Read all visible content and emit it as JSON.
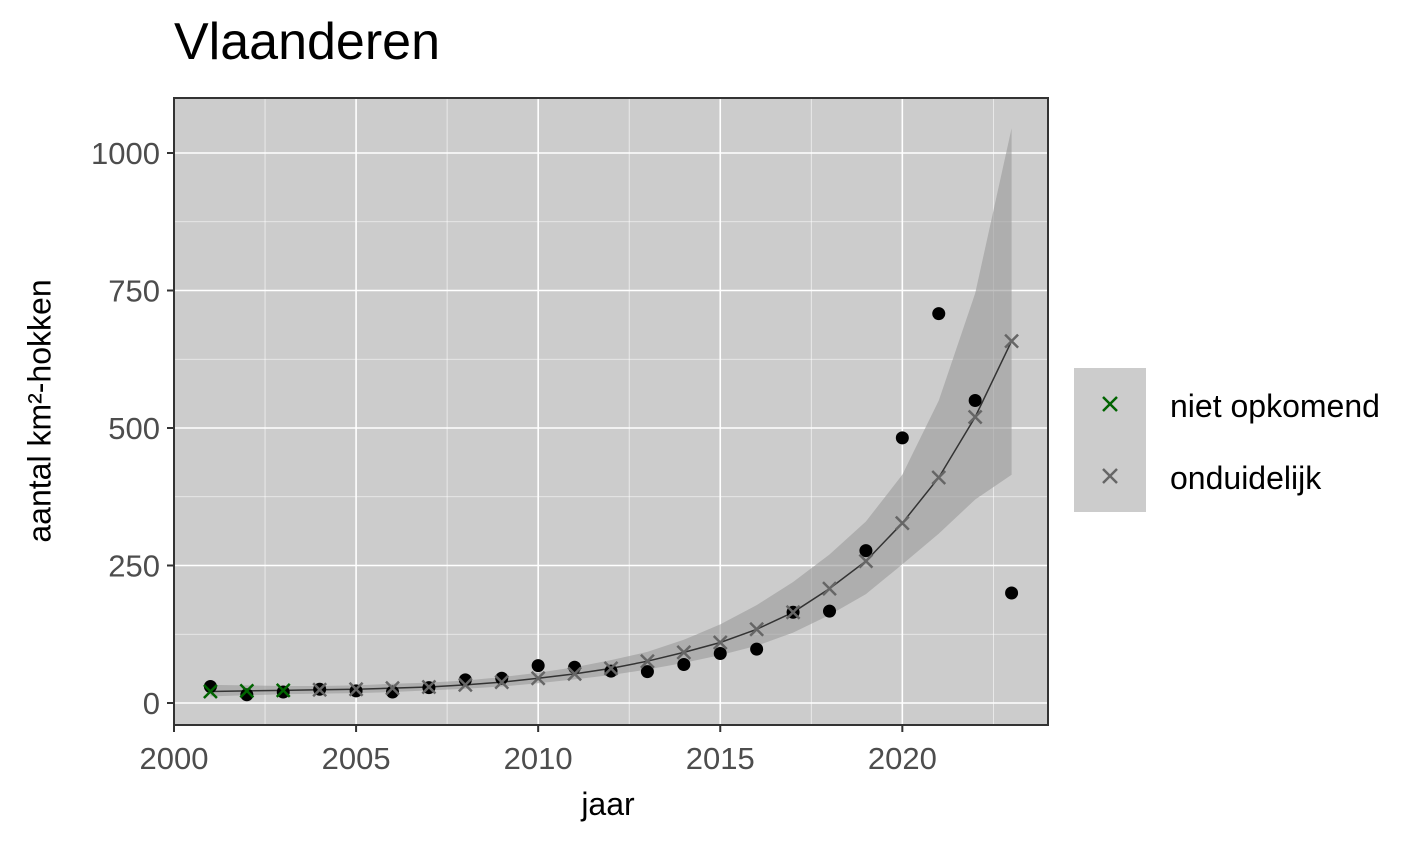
{
  "chart_data": {
    "type": "scatter",
    "title": "Vlaanderen",
    "xlabel": "jaar",
    "ylabel": "aantal km²-hokken",
    "xlim": [
      2000,
      2024
    ],
    "ylim": [
      -40,
      1100
    ],
    "xticks": [
      2000,
      2005,
      2010,
      2015,
      2020
    ],
    "yticks": [
      0,
      250,
      500,
      750,
      1000
    ],
    "grid": true,
    "legend_position": "right",
    "observed": {
      "x": [
        2001,
        2002,
        2003,
        2004,
        2005,
        2006,
        2007,
        2008,
        2009,
        2010,
        2011,
        2012,
        2013,
        2014,
        2015,
        2016,
        2017,
        2018,
        2019,
        2020,
        2021,
        2022,
        2023
      ],
      "y": [
        30,
        15,
        20,
        25,
        22,
        20,
        28,
        42,
        45,
        68,
        65,
        58,
        57,
        70,
        90,
        98,
        165,
        167,
        277,
        482,
        708,
        550,
        200
      ]
    },
    "fit": {
      "x": [
        2001,
        2002,
        2003,
        2004,
        2005,
        2006,
        2007,
        2008,
        2009,
        2010,
        2011,
        2012,
        2013,
        2014,
        2015,
        2016,
        2017,
        2018,
        2019,
        2020,
        2021,
        2022,
        2023
      ],
      "y": [
        21,
        22,
        23,
        24,
        25,
        27,
        29,
        33,
        38,
        45,
        53,
        63,
        76,
        92,
        110,
        134,
        165,
        208,
        258,
        327,
        410,
        520,
        658
      ],
      "lower": [
        12,
        14,
        16,
        17,
        18,
        20,
        23,
        26,
        30,
        36,
        43,
        51,
        61,
        73,
        87,
        104,
        128,
        160,
        198,
        252,
        308,
        370,
        415
      ],
      "upper": [
        33,
        32,
        31,
        31,
        32,
        35,
        37,
        41,
        47,
        55,
        65,
        78,
        93,
        115,
        143,
        178,
        220,
        270,
        330,
        415,
        550,
        745,
        1045
      ]
    },
    "series": [
      {
        "name": "niet opkomend",
        "color": "#006400",
        "marker": "x",
        "x": [
          2001,
          2002,
          2003
        ],
        "y": [
          21,
          22,
          23
        ]
      },
      {
        "name": "onduidelijk",
        "color": "#666666",
        "marker": "x",
        "x": [
          2004,
          2005,
          2006,
          2007,
          2008,
          2009,
          2010,
          2011,
          2012,
          2013,
          2014,
          2015,
          2016,
          2017,
          2018,
          2019,
          2020,
          2021,
          2022,
          2023
        ],
        "y": [
          24,
          25,
          27,
          29,
          33,
          38,
          45,
          53,
          63,
          76,
          92,
          110,
          134,
          165,
          208,
          258,
          327,
          410,
          520,
          658
        ]
      }
    ]
  },
  "colors": {
    "panel_background": "#cccccc",
    "grid_major": "#ffffff",
    "ribbon": "#999999",
    "fit_line": "#333333",
    "points": "#000000"
  }
}
